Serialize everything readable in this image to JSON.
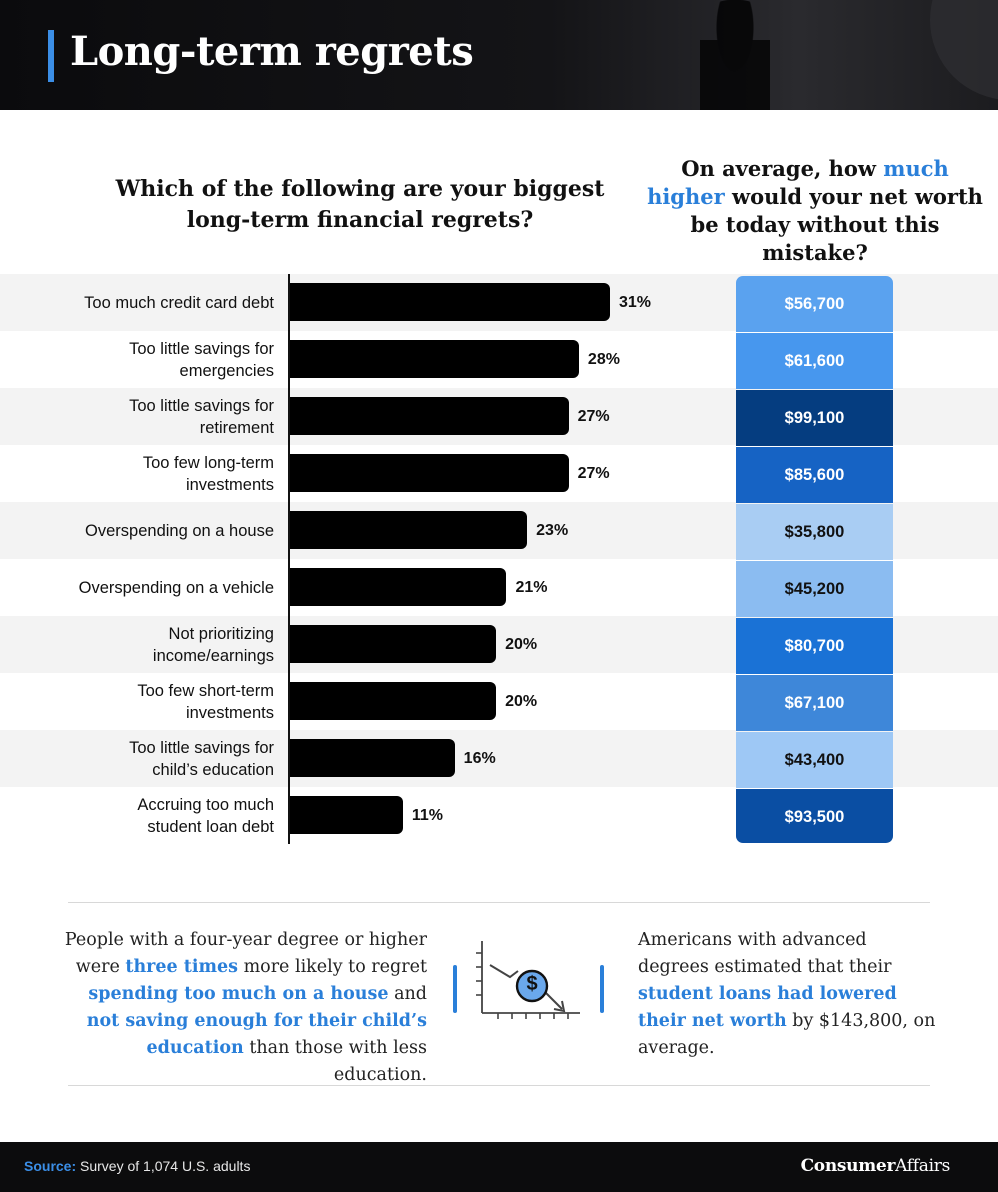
{
  "header": {
    "title": "Long-term regrets"
  },
  "left_question": "Which of the following are your biggest long-term financial regrets?",
  "right_question": {
    "pre": "On average, how ",
    "highlight": "much higher",
    "post": " would your net worth be today without this mistake?"
  },
  "chart_data": {
    "type": "bar",
    "orientation": "horizontal",
    "categories": [
      "Too much credit card debt",
      "Too little savings for emergencies",
      "Too little savings for retirement",
      "Too few long-term investments",
      "Overspending on a house",
      "Overspending on a vehicle",
      "Not prioritizing income/earnings",
      "Too few short-term investments",
      "Too little savings for child’s education",
      "Accruing too much student loan debt"
    ],
    "label_lines": [
      [
        "Too much credit card debt"
      ],
      [
        "Too little savings for",
        "emergencies"
      ],
      [
        "Too little savings for",
        "retirement"
      ],
      [
        "Too few long-term",
        "investments"
      ],
      [
        "Overspending on a house"
      ],
      [
        "Overspending on a vehicle"
      ],
      [
        "Not prioritizing",
        "income/earnings"
      ],
      [
        "Too few short-term",
        "investments"
      ],
      [
        "Too little savings for",
        "child’s education"
      ],
      [
        "Accruing too much",
        "student loan debt"
      ]
    ],
    "values": [
      31,
      28,
      27,
      27,
      23,
      21,
      20,
      20,
      16,
      11
    ],
    "value_labels": [
      "31%",
      "28%",
      "27%",
      "27%",
      "23%",
      "21%",
      "20%",
      "20%",
      "16%",
      "11%"
    ],
    "bar_color": "#000000",
    "xlim": [
      0,
      100
    ]
  },
  "net_worth": {
    "values": [
      56700,
      61600,
      99100,
      85600,
      35800,
      45200,
      80700,
      67100,
      43400,
      93500
    ],
    "labels": [
      "$56,700",
      "$61,600",
      "$99,100",
      "$85,600",
      "$35,800",
      "$45,200",
      "$80,700",
      "$67,100",
      "$43,400",
      "$93,500"
    ],
    "colors": [
      "#5aa2ef",
      "#4797ee",
      "#053d80",
      "#1663c4",
      "#a9cdf3",
      "#8bbcf1",
      "#1a72d6",
      "#3e87d9",
      "#9ec8f5",
      "#0a4ea3"
    ],
    "text_colors": [
      "#ffffff",
      "#ffffff",
      "#ffffff",
      "#ffffff",
      "#111111",
      "#111111",
      "#ffffff",
      "#ffffff",
      "#111111",
      "#ffffff"
    ]
  },
  "note_left": [
    {
      "t": "People with a four-year degree or higher were ",
      "h": false
    },
    {
      "t": "three times",
      "h": true
    },
    {
      "t": " more likely to regret ",
      "h": false
    },
    {
      "t": "spending too much on a house",
      "h": true
    },
    {
      "t": " and ",
      "h": false
    },
    {
      "t": "not saving enough for their child’s education",
      "h": true
    },
    {
      "t": " than those with less education.",
      "h": false
    }
  ],
  "note_right": [
    {
      "t": "Americans with advanced degrees estimated that their ",
      "h": false
    },
    {
      "t": "student loans had lowered their net worth",
      "h": true
    },
    {
      "t": " by $143,800, on average.",
      "h": false
    }
  ],
  "icon": {
    "name": "declining-dollar-chart-icon",
    "symbol": "$",
    "accent": "#2a7fd9"
  },
  "footer": {
    "source_key": "Source:",
    "source_text": " Survey of 1,074 U.S. adults",
    "logo_bold": "Consumer",
    "logo_regular": "Affairs"
  }
}
